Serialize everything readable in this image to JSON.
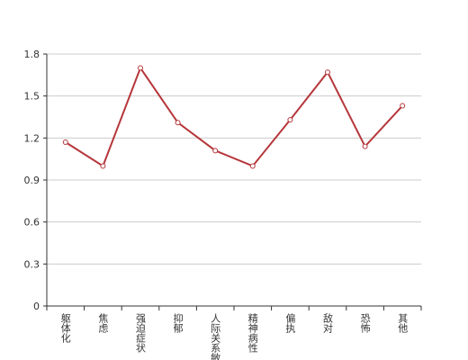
{
  "chart_data": {
    "type": "line",
    "categories": [
      "躯体化",
      "焦虑",
      "强迫症状",
      "抑郁",
      "人际关系敏感",
      "精神病性",
      "偏执",
      "敌对",
      "恐怖",
      "其他"
    ],
    "values": [
      1.17,
      1.0,
      1.7,
      1.31,
      1.11,
      1.0,
      1.33,
      1.67,
      1.14,
      1.43
    ],
    "color": "#b5363a",
    "ylim": [
      0,
      1.8
    ],
    "yticks": [
      0,
      0.3,
      0.6,
      0.9,
      1.2,
      1.5,
      1.8
    ],
    "grid": true
  }
}
